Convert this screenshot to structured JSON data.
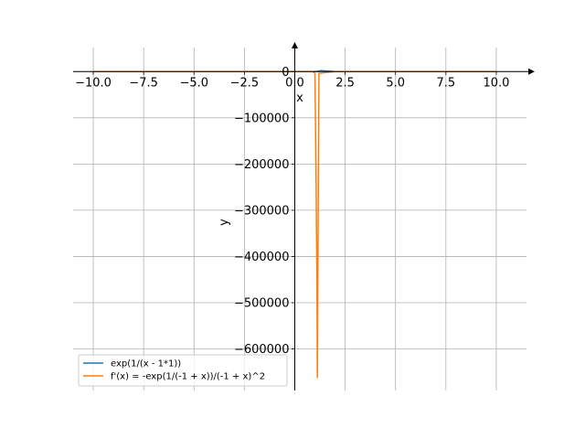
{
  "chart_data": {
    "type": "line",
    "xlabel": "x",
    "ylabel": "y",
    "xlim": [
      -11.0,
      11.5
    ],
    "ylim": [
      -690000,
      52000
    ],
    "grid": true,
    "legend_position": "lower-left",
    "x_ticks": [
      -10.0,
      -7.5,
      -5.0,
      -2.5,
      0.0,
      2.5,
      5.0,
      7.5,
      10.0
    ],
    "x_tick_labels": [
      "−10.0",
      "−7.5",
      "−5.0",
      "−2.5",
      "0.0",
      "2.5",
      "5.0",
      "7.5",
      "10.0"
    ],
    "y_ticks": [
      0,
      -100000,
      -200000,
      -300000,
      -400000,
      -500000,
      -600000
    ],
    "y_tick_labels": [
      "0",
      "−100000",
      "−200000",
      "−300000",
      "−400000",
      "−500000",
      "−600000"
    ],
    "series": [
      {
        "name": "exp(1/(x - 1*1))",
        "color": "#1f77b4",
        "x": [
          -10,
          -8,
          -6,
          -4,
          -2,
          0,
          0.5,
          0.9,
          1.08,
          1.3,
          2,
          4,
          6,
          8,
          10
        ],
        "y": [
          0.913,
          0.895,
          0.867,
          0.819,
          0.717,
          0.368,
          0.135,
          0.0,
          0,
          2000,
          2.718,
          1.396,
          1.221,
          1.154,
          1.117
        ]
      },
      {
        "name": "f'(x) = -exp(1/(-1 + x))/(-1 + x)^2",
        "color": "#ff7f0e",
        "x": [
          -10,
          -5,
          -2,
          0,
          0.5,
          0.9,
          1.0,
          1.05,
          1.1,
          1.12,
          1.2,
          2,
          5,
          10
        ],
        "y": [
          -0.008,
          -0.024,
          -0.08,
          -0.368,
          -0.541,
          -0.0,
          -4000,
          -200000,
          -450000,
          -662000,
          -3700,
          -2.718,
          -0.08,
          -0.014
        ]
      }
    ]
  }
}
